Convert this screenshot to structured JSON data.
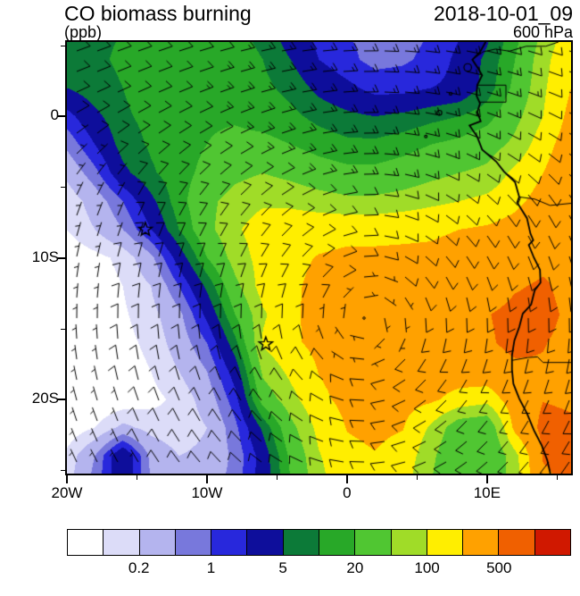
{
  "header": {
    "title": "CO biomass burning",
    "units": "(ppb)",
    "datetime": "2018-10-01_09",
    "level": "600 hPa"
  },
  "axes": {
    "x": {
      "labels": [
        {
          "text": "20W",
          "lon": -20
        },
        {
          "text": "10W",
          "lon": -10
        },
        {
          "text": "0",
          "lon": 0
        },
        {
          "text": "10E",
          "lon": 10
        }
      ],
      "minor_lons": [
        -15,
        -5,
        5,
        15
      ]
    },
    "y": {
      "labels": [
        {
          "text": "0",
          "lat": 0
        },
        {
          "text": "10S",
          "lat": -10
        },
        {
          "text": "20S",
          "lat": -20
        }
      ],
      "minor_lats": [
        5,
        -5,
        -15,
        -25
      ]
    }
  },
  "colorbar": {
    "labels": [
      "0.2",
      "1",
      "5",
      "20",
      "100",
      "500"
    ],
    "boundary_indices": [
      2,
      4,
      6,
      8,
      10,
      12
    ]
  },
  "chart_data": {
    "type": "heatmap",
    "title": "CO biomass burning",
    "units": "ppb",
    "datetime": "2018-10-01_09",
    "pressure_level": "600 hPa",
    "lon_range": [
      -20,
      16
    ],
    "lat_range": [
      5.25,
      -25.25
    ],
    "levels": [
      0.1,
      0.2,
      0.5,
      1,
      2,
      5,
      10,
      20,
      50,
      100,
      200,
      500,
      1000
    ],
    "colors": [
      "#FFFFFF",
      "#DCDCF8",
      "#B4B4EE",
      "#7878DC",
      "#2828DC",
      "#0E0E9B",
      "#0C7A38",
      "#28A828",
      "#50C632",
      "#A0DC28",
      "#FFEE00",
      "#FFA100",
      "#F06000",
      "#D01800"
    ],
    "lons": [
      -20,
      -18,
      -16,
      -14,
      -12,
      -10,
      -8,
      -6,
      -4,
      -2,
      0,
      2,
      4,
      6,
      8,
      10,
      12,
      14,
      16
    ],
    "lats": [
      6,
      4,
      2,
      0,
      -2,
      -4,
      -6,
      -8,
      -10,
      -12,
      -14,
      -16,
      -18,
      -20,
      -22,
      -24,
      -26
    ],
    "values": [
      [
        8,
        9,
        10,
        12,
        14,
        15,
        12,
        8,
        3,
        1.5,
        1,
        0.8,
        0.8,
        1,
        1.8,
        4,
        15,
        60,
        150
      ],
      [
        7,
        9,
        11,
        13,
        15,
        16,
        14,
        10,
        5,
        2,
        1.2,
        0.8,
        0.9,
        1.2,
        2.5,
        6,
        20,
        80,
        180
      ],
      [
        5,
        8,
        10,
        14,
        16,
        18,
        16,
        12,
        8,
        4,
        2.5,
        1.5,
        1.5,
        2,
        2.5,
        7,
        25,
        90,
        200
      ],
      [
        1.5,
        4,
        9,
        12,
        15,
        18,
        18,
        15,
        12,
        8,
        6,
        5,
        6,
        8,
        10,
        15,
        40,
        100,
        250
      ],
      [
        0.6,
        2,
        7,
        11,
        15,
        20,
        25,
        25,
        20,
        15,
        12,
        12,
        15,
        20,
        25,
        35,
        60,
        150,
        300
      ],
      [
        0.25,
        0.8,
        4,
        9,
        15,
        25,
        40,
        50,
        40,
        30,
        25,
        25,
        30,
        40,
        50,
        60,
        120,
        200,
        350
      ],
      [
        0.12,
        0.3,
        1,
        4,
        15,
        40,
        70,
        90,
        85,
        70,
        60,
        60,
        70,
        85,
        100,
        120,
        170,
        260,
        400
      ],
      [
        0.1,
        0.2,
        0.5,
        2,
        10,
        40,
        90,
        140,
        160,
        170,
        180,
        180,
        185,
        190,
        200,
        220,
        260,
        330,
        420
      ],
      [
        0.06,
        0.08,
        0.12,
        0.4,
        3,
        20,
        70,
        130,
        180,
        205,
        215,
        215,
        215,
        215,
        225,
        250,
        300,
        400,
        420
      ],
      [
        0.05,
        0.07,
        0.1,
        0.2,
        1,
        6,
        40,
        140,
        185,
        225,
        235,
        235,
        235,
        245,
        255,
        290,
        460,
        560,
        380
      ],
      [
        0.05,
        0.06,
        0.09,
        0.15,
        0.4,
        2.5,
        20,
        90,
        180,
        245,
        265,
        265,
        265,
        275,
        285,
        480,
        640,
        640,
        420
      ],
      [
        0.05,
        0.06,
        0.08,
        0.12,
        0.3,
        1,
        8,
        110,
        180,
        235,
        265,
        275,
        285,
        285,
        305,
        450,
        620,
        520,
        400
      ],
      [
        0.04,
        0.05,
        0.07,
        0.1,
        0.2,
        0.5,
        3,
        60,
        120,
        205,
        255,
        265,
        265,
        265,
        285,
        330,
        420,
        460,
        430
      ],
      [
        0.04,
        0.05,
        0.06,
        0.08,
        0.12,
        0.3,
        1.5,
        30,
        80,
        175,
        235,
        255,
        255,
        225,
        160,
        130,
        310,
        490,
        460
      ],
      [
        0.06,
        0.1,
        0.25,
        0.15,
        0.12,
        0.2,
        0.8,
        6,
        40,
        125,
        205,
        225,
        205,
        90,
        30,
        25,
        250,
        600,
        550
      ],
      [
        0.12,
        0.5,
        5,
        0.4,
        0.2,
        0.25,
        0.6,
        3,
        25,
        95,
        175,
        195,
        160,
        60,
        22,
        20,
        80,
        520,
        540
      ],
      [
        0.15,
        0.7,
        4,
        0.5,
        0.25,
        0.3,
        0.7,
        3,
        20,
        80,
        160,
        180,
        130,
        50,
        20,
        25,
        70,
        450,
        560
      ]
    ],
    "markers": [
      {
        "lon": -14.4,
        "lat": -8.0
      },
      {
        "lon": -5.8,
        "lat": -16.1
      }
    ],
    "wind": {
      "type": "barbs",
      "center_lon": 1.5,
      "center_lat": -14.5,
      "peak_speed_kt": 14,
      "peak_radius_deg": 9,
      "trade_u_kt": -7,
      "trade_full_lat": 2,
      "trade_zero_lat": -6,
      "spacing_px": 23
    },
    "coastline": [
      [
        9.9,
        5.25
      ],
      [
        9.5,
        4.55
      ],
      [
        8.95,
        4.0
      ],
      [
        9.35,
        3.4
      ],
      [
        9.65,
        2.9
      ],
      [
        9.3,
        2.2
      ],
      [
        9.25,
        1.45
      ],
      [
        9.5,
        0.9
      ],
      [
        9.3,
        0.3
      ],
      [
        9.55,
        -0.35
      ],
      [
        8.75,
        -0.65
      ],
      [
        9.3,
        -1.45
      ],
      [
        9.65,
        -2.35
      ],
      [
        10.65,
        -3.2
      ],
      [
        11.2,
        -3.9
      ],
      [
        12.0,
        -4.65
      ],
      [
        12.3,
        -5.7
      ],
      [
        12.15,
        -6.1
      ],
      [
        12.85,
        -7.2
      ],
      [
        13.1,
        -8.3
      ],
      [
        13.3,
        -8.75
      ],
      [
        12.98,
        -9.1
      ],
      [
        13.35,
        -10.0
      ],
      [
        13.78,
        -10.85
      ],
      [
        13.82,
        -11.75
      ],
      [
        13.4,
        -12.3
      ],
      [
        13.15,
        -13.3
      ],
      [
        12.55,
        -13.95
      ],
      [
        12.3,
        -14.9
      ],
      [
        11.95,
        -15.85
      ],
      [
        11.78,
        -16.9
      ],
      [
        11.78,
        -17.9
      ],
      [
        11.88,
        -18.9
      ],
      [
        12.3,
        -19.95
      ],
      [
        12.85,
        -21.0
      ],
      [
        13.35,
        -22.2
      ],
      [
        13.9,
        -23.25
      ],
      [
        14.3,
        -24.3
      ],
      [
        14.52,
        -25.25
      ]
    ],
    "borders": [
      [
        [
          8.95,
          4.0
        ],
        [
          9.7,
          4.55
        ],
        [
          10.6,
          4.75
        ],
        [
          11.6,
          4.6
        ],
        [
          12.8,
          4.95
        ],
        [
          14.2,
          4.95
        ],
        [
          15.1,
          5.25
        ]
      ],
      [
        [
          9.3,
          2.2
        ],
        [
          11.35,
          2.2
        ],
        [
          11.35,
          1.0
        ],
        [
          9.45,
          1.0
        ]
      ],
      [
        [
          12.3,
          -5.7
        ],
        [
          13.4,
          -5.85
        ],
        [
          14.5,
          -6.3
        ],
        [
          16,
          -6.15
        ]
      ],
      [
        [
          11.78,
          -17.25
        ],
        [
          12.9,
          -17.05
        ],
        [
          13.6,
          -17.0
        ],
        [
          14.0,
          -17.4
        ],
        [
          16,
          -17.4
        ]
      ]
    ],
    "islands": [
      {
        "lon": 8.62,
        "lat": 3.45,
        "r_deg": 0.27
      },
      {
        "lon": 7.4,
        "lat": 1.6,
        "r_deg": 0.1
      },
      {
        "lon": 6.6,
        "lat": 0.25,
        "r_deg": 0.17
      },
      {
        "lon": 5.63,
        "lat": -1.43,
        "r_deg": 0.09
      }
    ]
  }
}
